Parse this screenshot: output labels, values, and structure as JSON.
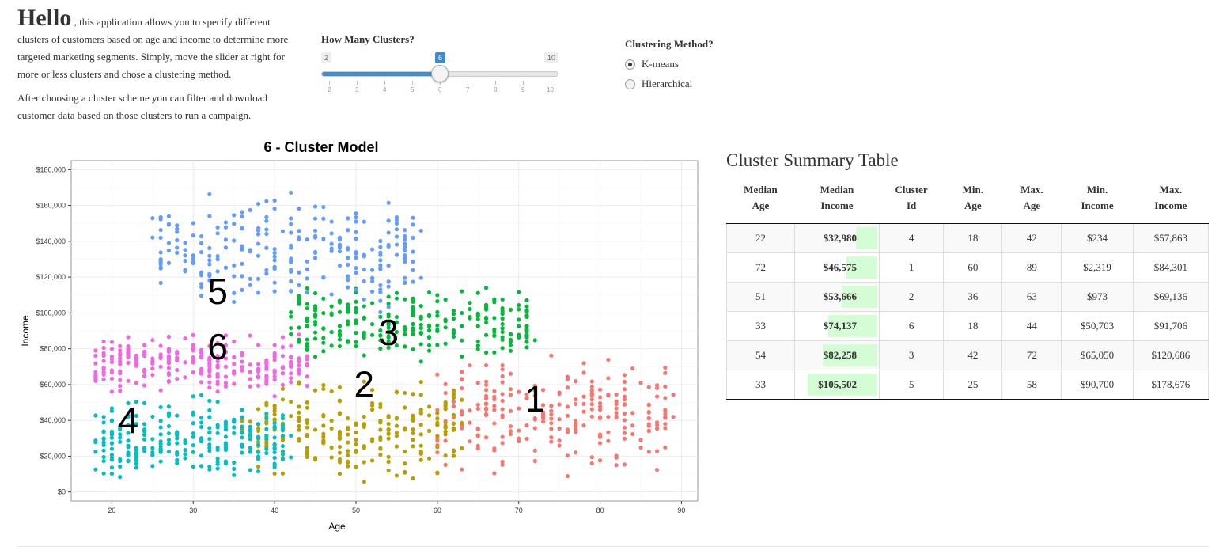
{
  "intro": {
    "hello": "Hello",
    "paragraph1": ", this application allows you to specify different clusters of customers based on age and income to determine more targeted marketing segments. Simply, move the slider at right for more or less clusters and chose a clustering method.",
    "paragraph2": "After choosing a cluster scheme you can filter and download customer data based on those clusters to run a campaign."
  },
  "slider": {
    "label": "How Many Clusters?",
    "min": 2,
    "max": 10,
    "value": 6,
    "min_label": "2",
    "max_label": "10",
    "value_label": "6",
    "ticks": [
      "2",
      "3",
      "4",
      "5",
      "6",
      "7",
      "8",
      "9",
      "10"
    ],
    "fill_color": "#428bca"
  },
  "method": {
    "label": "Clustering Method?",
    "options": [
      {
        "label": "K-means",
        "selected": true
      },
      {
        "label": "Hierarchical",
        "selected": false
      }
    ]
  },
  "chart_data": {
    "type": "scatter",
    "title": "6 - Cluster Model",
    "xlabel": "Age",
    "ylabel": "Income",
    "xlim": [
      15,
      92
    ],
    "ylim": [
      -5000,
      185000
    ],
    "x_ticks": [
      20,
      30,
      40,
      50,
      60,
      70,
      80,
      90
    ],
    "y_ticks": [
      0,
      20000,
      40000,
      60000,
      80000,
      100000,
      120000,
      140000,
      160000,
      180000
    ],
    "y_tick_labels": [
      "$0",
      "$20,000",
      "$40,000",
      "$60,000",
      "$80,000",
      "$100,000",
      "$120,000",
      "$140,000",
      "$160,000",
      "$180,000"
    ],
    "grid": true,
    "clusters": [
      {
        "id": "1",
        "color": "#f8766d",
        "age_range": [
          60,
          89
        ],
        "income_range": [
          2319,
          84301
        ],
        "label_at": [
          72,
          45000
        ]
      },
      {
        "id": "2",
        "color": "#b79f00",
        "age_range": [
          36,
          63
        ],
        "income_range": [
          973,
          69136
        ],
        "label_at": [
          51,
          53000
        ]
      },
      {
        "id": "3",
        "color": "#00ba38",
        "age_range": [
          42,
          72
        ],
        "income_range": [
          65050,
          120686
        ],
        "label_at": [
          54,
          82000
        ]
      },
      {
        "id": "4",
        "color": "#00bfc4",
        "age_range": [
          18,
          42
        ],
        "income_range": [
          234,
          57863
        ],
        "label_at": [
          22,
          33000
        ]
      },
      {
        "id": "5",
        "color": "#619cff",
        "age_range": [
          25,
          58
        ],
        "income_range": [
          90700,
          178676
        ],
        "label_at": [
          33,
          105000
        ]
      },
      {
        "id": "6",
        "color": "#f564e3",
        "age_range": [
          18,
          44
        ],
        "income_range": [
          50703,
          91706
        ],
        "label_at": [
          33,
          74000
        ]
      }
    ]
  },
  "table": {
    "title": "Cluster Summary Table",
    "headers": [
      [
        "Median",
        "Age"
      ],
      [
        "Median",
        "Income"
      ],
      [
        "Cluster",
        "Id"
      ],
      [
        "Min.",
        "Age"
      ],
      [
        "Max.",
        "Age"
      ],
      [
        "Min.",
        "Income"
      ],
      [
        "Max.",
        "Income"
      ]
    ],
    "income_max": 105502,
    "rows": [
      {
        "median_age": "22",
        "median_income": "$32,980",
        "income_value": 32980,
        "cluster_id": "4",
        "min_age": "18",
        "max_age": "42",
        "min_income": "$234",
        "max_income": "$57,863"
      },
      {
        "median_age": "72",
        "median_income": "$46,575",
        "income_value": 46575,
        "cluster_id": "1",
        "min_age": "60",
        "max_age": "89",
        "min_income": "$2,319",
        "max_income": "$84,301"
      },
      {
        "median_age": "51",
        "median_income": "$53,666",
        "income_value": 53666,
        "cluster_id": "2",
        "min_age": "36",
        "max_age": "63",
        "min_income": "$973",
        "max_income": "$69,136"
      },
      {
        "median_age": "33",
        "median_income": "$74,137",
        "income_value": 74137,
        "cluster_id": "6",
        "min_age": "18",
        "max_age": "44",
        "min_income": "$50,703",
        "max_income": "$91,706"
      },
      {
        "median_age": "54",
        "median_income": "$82,258",
        "income_value": 82258,
        "cluster_id": "3",
        "min_age": "42",
        "max_age": "72",
        "min_income": "$65,050",
        "max_income": "$120,686"
      },
      {
        "median_age": "33",
        "median_income": "$105,502",
        "income_value": 105502,
        "cluster_id": "5",
        "min_age": "25",
        "max_age": "58",
        "min_income": "$90,700",
        "max_income": "$178,676"
      }
    ]
  }
}
